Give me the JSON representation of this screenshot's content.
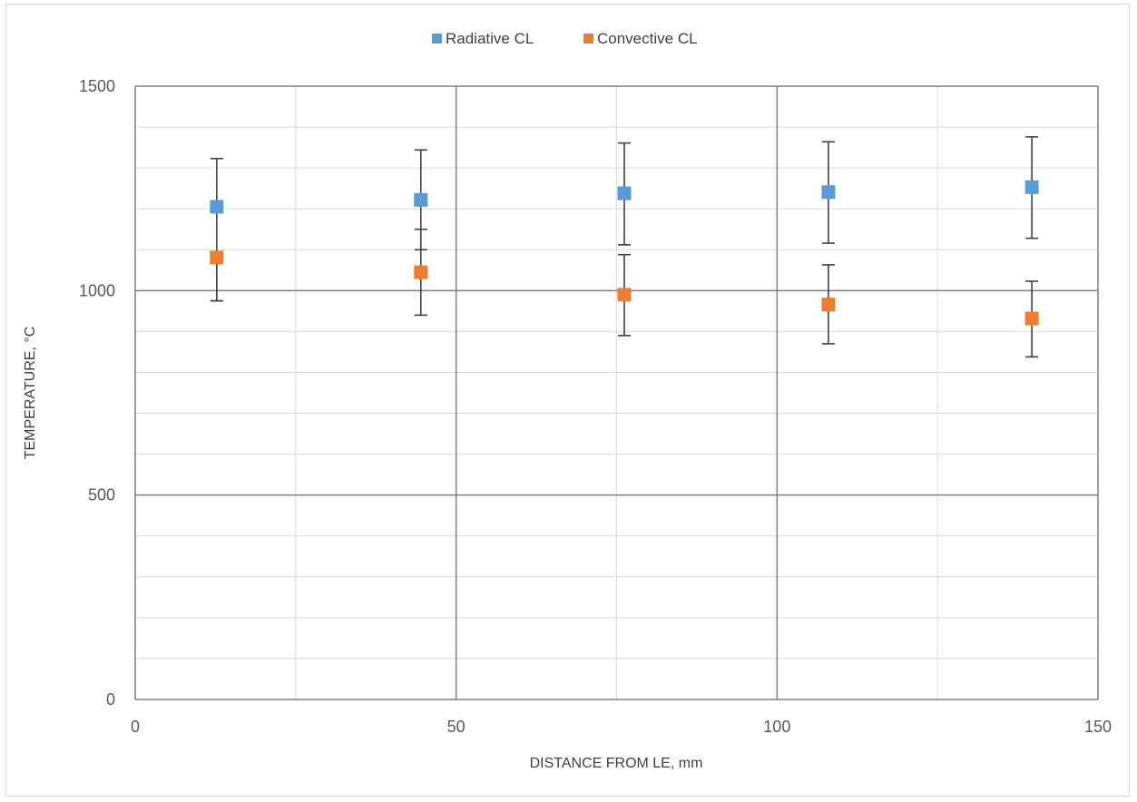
{
  "chart_data": {
    "type": "scatter",
    "xlabel": "DISTANCE FROM LE, mm",
    "ylabel": "TEMPERATURE, °C",
    "xlim": [
      0,
      150
    ],
    "ylim": [
      0,
      1500
    ],
    "x_major_ticks": [
      0,
      50,
      100,
      150
    ],
    "x_minor_ticks": [
      25,
      75,
      125
    ],
    "y_major_ticks": [
      0,
      500,
      1000,
      1500
    ],
    "y_minor_step": 100,
    "grid": true,
    "legend_position": "top",
    "series": [
      {
        "name": "Radiative CL",
        "color": "#5b9bd5",
        "x": [
          12.7,
          44.5,
          76.2,
          108,
          139.7
        ],
        "y": [
          1205,
          1222,
          1238,
          1241,
          1253
        ],
        "err_low": [
          975,
          1100,
          1112,
          1116,
          1128
        ],
        "err_high": [
          1323,
          1344,
          1361,
          1364,
          1376
        ]
      },
      {
        "name": "Convective CL",
        "color": "#ed7d31",
        "x": [
          12.7,
          44.5,
          76.2,
          108,
          139.7
        ],
        "y": [
          1081,
          1045,
          990,
          966,
          932
        ],
        "err_low": [
          975,
          940,
          890,
          870,
          838
        ],
        "err_high": [
          1081,
          1150,
          1088,
          1063,
          1023
        ]
      }
    ]
  }
}
